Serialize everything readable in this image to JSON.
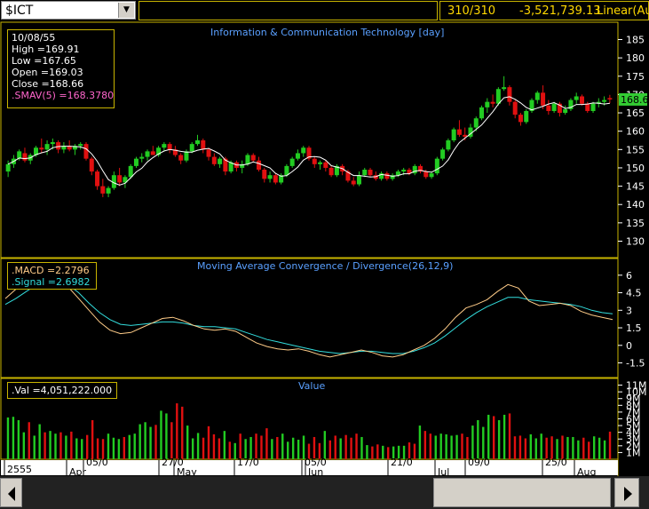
{
  "toolbar": {
    "symbol": "$ICT",
    "count": "310/310",
    "value": "-3,521,739.13",
    "scale": "Linear(Aut"
  },
  "price_panel": {
    "title": "Information & Communication Technology [day]",
    "info": {
      "date": "10/08/55",
      "high": "High  =169.91",
      "low": "Low   =167.65",
      "open": "Open  =169.03",
      "close": "Close  =168.66",
      "smav": ".SMAV(5)   =168.3780"
    },
    "last_price": "168.66",
    "ticks": [
      "185",
      "180",
      "175",
      "170",
      "165",
      "160",
      "155",
      "150",
      "145",
      "140",
      "135",
      "130"
    ]
  },
  "macd_panel": {
    "title": "Moving Average Convergence / Divergence(26,12,9)",
    "macd": ".MACD   =2.2796",
    "signal": ".Signal   =2.6982",
    "ticks": [
      "6",
      "4.5",
      "3",
      "1.5",
      "0",
      "-1.5"
    ]
  },
  "volume_panel": {
    "title": "Value",
    "val": ".Val   =4,051,222.000",
    "ticks": [
      "11M",
      "10M",
      "9M",
      "8M",
      "7M",
      "6M",
      "5M",
      "4M",
      "3M",
      "2M",
      "1M"
    ]
  },
  "date_axis": {
    "labels": [
      "2555",
      "05/0",
      "Apr",
      "27/0",
      "May",
      "17/0",
      "05/0",
      "Jun",
      "21/0",
      "Jul",
      "09/0",
      "25/0",
      "Aug"
    ]
  },
  "colors": {
    "up": "#22cc22",
    "down": "#e01010",
    "smav": "#ffffff",
    "macd": "#ffcc88",
    "signal": "#33dddd",
    "frame": "#c8b400",
    "title": "#5aa0ff"
  },
  "chart_data": [
    {
      "type": "candlestick",
      "title": "Information & Communication Technology [day]",
      "ylim": [
        126,
        189
      ],
      "ticks": [
        185,
        180,
        175,
        170,
        165,
        160,
        155,
        150,
        145,
        140,
        135,
        130
      ],
      "ohlc": [
        [
          149,
          152,
          147.5,
          151
        ],
        [
          151,
          153.5,
          150,
          152.5
        ],
        [
          152.5,
          155,
          152,
          154.5
        ],
        [
          154,
          155.5,
          151.5,
          152
        ],
        [
          152,
          154,
          151,
          153.5
        ],
        [
          153.5,
          156,
          153,
          155.5
        ],
        [
          155.5,
          158,
          154,
          155
        ],
        [
          155,
          157.5,
          153.5,
          156.5
        ],
        [
          156.5,
          158,
          155,
          157
        ],
        [
          157,
          157.5,
          154,
          155
        ],
        [
          155,
          157,
          154,
          156
        ],
        [
          156,
          157.5,
          154.5,
          155
        ],
        [
          155,
          156.5,
          153.5,
          156
        ],
        [
          156,
          157,
          155,
          156.5
        ],
        [
          156.5,
          157,
          152,
          152.5
        ],
        [
          152.5,
          153,
          148,
          149
        ],
        [
          149,
          149.5,
          144,
          145
        ],
        [
          145,
          147,
          142,
          143
        ],
        [
          143,
          145,
          142,
          144.5
        ],
        [
          144.5,
          149,
          144,
          148
        ],
        [
          148,
          150,
          145,
          146
        ],
        [
          146,
          148,
          144.5,
          147.5
        ],
        [
          147.5,
          151,
          147,
          150.5
        ],
        [
          150.5,
          153,
          150,
          152.5
        ],
        [
          152.5,
          154,
          151.5,
          153
        ],
        [
          153,
          155,
          152,
          154.5
        ],
        [
          154.5,
          156,
          153.5,
          153.5
        ],
        [
          153.5,
          156,
          153,
          155.5
        ],
        [
          155.5,
          157,
          154.5,
          156.5
        ],
        [
          156.5,
          157,
          154,
          155
        ],
        [
          155,
          156,
          153,
          153.5
        ],
        [
          153.5,
          154,
          151,
          152
        ],
        [
          152,
          155,
          151.5,
          154.5
        ],
        [
          154.5,
          157,
          154,
          156.5
        ],
        [
          156.5,
          159,
          156,
          157.5
        ],
        [
          157.5,
          158,
          154,
          155
        ],
        [
          155,
          155.5,
          152,
          153
        ],
        [
          153,
          154,
          150.5,
          151
        ],
        [
          151,
          153,
          150,
          152.5
        ],
        [
          152.5,
          153,
          148,
          149
        ],
        [
          149,
          152,
          148.5,
          151.5
        ],
        [
          151.5,
          152,
          149,
          150
        ],
        [
          150,
          152,
          148.5,
          151
        ],
        [
          151,
          154,
          150.5,
          153.5
        ],
        [
          153.5,
          154,
          151.5,
          152
        ],
        [
          152,
          153,
          149,
          149.5
        ],
        [
          149.5,
          150,
          146,
          147
        ],
        [
          147,
          149,
          146,
          148
        ],
        [
          148,
          148.5,
          145.5,
          146
        ],
        [
          146,
          148.5,
          145.5,
          148
        ],
        [
          148,
          151,
          147.5,
          150.5
        ],
        [
          150.5,
          153,
          150,
          152.5
        ],
        [
          152.5,
          155,
          152,
          154
        ],
        [
          154,
          156,
          153,
          155.5
        ],
        [
          155.5,
          156,
          152,
          152.5
        ],
        [
          152.5,
          153,
          150,
          151
        ],
        [
          151,
          152,
          149.5,
          151.5
        ],
        [
          151.5,
          152,
          149,
          150
        ],
        [
          150,
          150.5,
          147.5,
          148
        ],
        [
          148,
          151,
          147.5,
          150.5
        ],
        [
          150.5,
          151,
          148,
          149
        ],
        [
          149,
          149.5,
          146,
          146.5
        ],
        [
          146.5,
          147.5,
          145,
          145.5
        ],
        [
          145.5,
          149,
          145,
          148
        ],
        [
          148,
          150,
          147.5,
          149.5
        ],
        [
          149.5,
          150,
          147.5,
          148
        ],
        [
          148,
          149,
          146.5,
          147
        ],
        [
          147,
          149,
          146.5,
          148.5
        ],
        [
          148.5,
          149,
          146.5,
          147
        ],
        [
          147,
          148.5,
          146.5,
          148
        ],
        [
          148,
          149.5,
          147.5,
          149
        ],
        [
          149,
          150,
          148,
          149.5
        ],
        [
          149.5,
          150,
          148,
          148.5
        ],
        [
          148.5,
          151,
          148,
          150.5
        ],
        [
          150.5,
          151,
          148.5,
          149
        ],
        [
          149,
          149.5,
          147,
          147.5
        ],
        [
          147.5,
          149,
          147,
          148.5
        ],
        [
          148.5,
          153,
          148,
          152.5
        ],
        [
          152.5,
          155.5,
          152,
          155
        ],
        [
          155,
          158,
          154.5,
          157.5
        ],
        [
          157.5,
          161,
          157,
          160.5
        ],
        [
          160.5,
          163,
          158.5,
          159
        ],
        [
          159,
          161,
          157.5,
          158.5
        ],
        [
          158.5,
          162,
          158,
          161
        ],
        [
          161,
          164,
          160,
          163.5
        ],
        [
          163.5,
          167,
          163,
          166.5
        ],
        [
          166.5,
          169,
          165,
          168
        ],
        [
          168,
          170,
          166.5,
          167.5
        ],
        [
          167.5,
          172,
          167,
          171.5
        ],
        [
          171.5,
          175,
          171,
          172
        ],
        [
          172,
          172.5,
          167,
          168
        ],
        [
          168,
          168.5,
          163.5,
          164.5
        ],
        [
          164.5,
          165,
          161.5,
          162.5
        ],
        [
          162.5,
          166,
          162,
          165.5
        ],
        [
          165.5,
          169,
          165,
          168.5
        ],
        [
          168.5,
          171,
          167.5,
          170.5
        ],
        [
          170.5,
          172.5,
          166,
          167
        ],
        [
          167,
          168.5,
          164.5,
          165.5
        ],
        [
          165.5,
          168,
          165,
          167.5
        ],
        [
          167.5,
          168,
          164,
          165
        ],
        [
          165,
          167,
          164.5,
          166
        ],
        [
          166,
          169,
          165.5,
          168.5
        ],
        [
          168.5,
          170.5,
          167.5,
          169.5
        ],
        [
          169.5,
          170,
          167,
          167.5
        ],
        [
          167.5,
          168,
          165,
          165.5
        ],
        [
          165.5,
          168,
          165,
          167.5
        ],
        [
          167.5,
          169,
          166.5,
          168
        ],
        [
          168,
          169.5,
          167,
          168.5
        ],
        [
          169.03,
          169.91,
          167.65,
          168.66
        ]
      ],
      "smav5": 168.378,
      "last": 168.66
    },
    {
      "type": "line",
      "title": "Moving Average Convergence / Divergence(26,12,9)",
      "ylim": [
        -2.6,
        7.2
      ],
      "ticks": [
        6,
        4.5,
        3,
        1.5,
        0,
        -1.5
      ],
      "series": [
        {
          "name": "MACD",
          "values": [
            4.0,
            4.8,
            5.6,
            6.0,
            6.0,
            5.7,
            5.0,
            4.0,
            3.0,
            2.0,
            1.3,
            1.0,
            1.1,
            1.5,
            1.9,
            2.3,
            2.4,
            2.1,
            1.7,
            1.4,
            1.3,
            1.4,
            1.2,
            0.7,
            0.2,
            -0.1,
            -0.3,
            -0.4,
            -0.3,
            -0.5,
            -0.8,
            -1.0,
            -0.8,
            -0.6,
            -0.4,
            -0.6,
            -0.9,
            -1.0,
            -0.8,
            -0.4,
            0.0,
            0.6,
            1.4,
            2.4,
            3.2,
            3.5,
            3.9,
            4.6,
            5.2,
            4.9,
            3.8,
            3.4,
            3.5,
            3.6,
            3.4,
            2.9,
            2.6,
            2.4,
            2.2
          ]
        },
        {
          "name": "Signal",
          "values": [
            3.5,
            4.0,
            4.6,
            5.2,
            5.5,
            5.5,
            5.2,
            4.5,
            3.6,
            2.8,
            2.2,
            1.8,
            1.7,
            1.8,
            1.9,
            2.0,
            2.0,
            1.9,
            1.7,
            1.6,
            1.6,
            1.5,
            1.4,
            1.1,
            0.8,
            0.5,
            0.3,
            0.1,
            -0.1,
            -0.3,
            -0.5,
            -0.6,
            -0.7,
            -0.6,
            -0.5,
            -0.5,
            -0.6,
            -0.7,
            -0.7,
            -0.5,
            -0.2,
            0.2,
            0.8,
            1.5,
            2.2,
            2.8,
            3.3,
            3.7,
            4.1,
            4.1,
            3.9,
            3.8,
            3.7,
            3.6,
            3.5,
            3.3,
            3.0,
            2.8,
            2.7
          ]
        }
      ],
      "macd_last": 2.2796,
      "signal_last": 2.6982
    },
    {
      "type": "bar",
      "title": "Value",
      "ylim": [
        0,
        11.6
      ],
      "ticks": [
        11,
        10,
        9,
        8,
        7,
        6,
        5,
        4,
        3,
        2,
        1
      ],
      "unit": "M",
      "values": [
        6.2,
        6.3,
        5.8,
        4.0,
        5.5,
        3.5,
        5.2,
        4.0,
        4.2,
        3.8,
        4.0,
        3.5,
        4.1,
        3.1,
        3.0,
        3.6,
        5.8,
        3.1,
        3.0,
        3.8,
        3.2,
        3.0,
        3.3,
        3.6,
        3.8,
        5.2,
        5.5,
        4.8,
        5.1,
        7.2,
        6.8,
        5.5,
        8.3,
        7.8,
        5.0,
        3.1,
        3.9,
        3.2,
        4.9,
        3.7,
        3.1,
        4.2,
        2.6,
        2.4,
        3.8,
        3.0,
        3.3,
        3.8,
        3.5,
        4.6,
        3.0,
        3.3,
        3.8,
        2.6,
        3.2,
        2.9,
        3.5,
        2.3,
        3.3,
        2.4,
        4.2,
        2.8,
        3.5,
        3.1,
        3.6,
        3.2,
        3.8,
        3.3,
        2.1,
        1.9,
        2.2,
        2.0,
        1.8,
        1.9,
        2.0,
        2.0,
        2.5,
        2.3,
        5.0,
        4.2,
        3.8,
        3.5,
        3.8,
        3.7,
        3.5,
        3.6,
        3.8,
        3.3,
        5.0,
        5.8,
        4.8,
        6.6,
        6.4,
        5.8,
        6.6,
        6.8,
        3.4,
        3.5,
        3.1,
        3.7,
        3.1,
        3.8,
        3.2,
        3.4,
        3.0,
        3.5,
        3.3,
        3.3,
        2.8,
        3.2,
        2.6,
        3.4,
        3.2,
        2.8,
        4.1
      ]
    }
  ]
}
